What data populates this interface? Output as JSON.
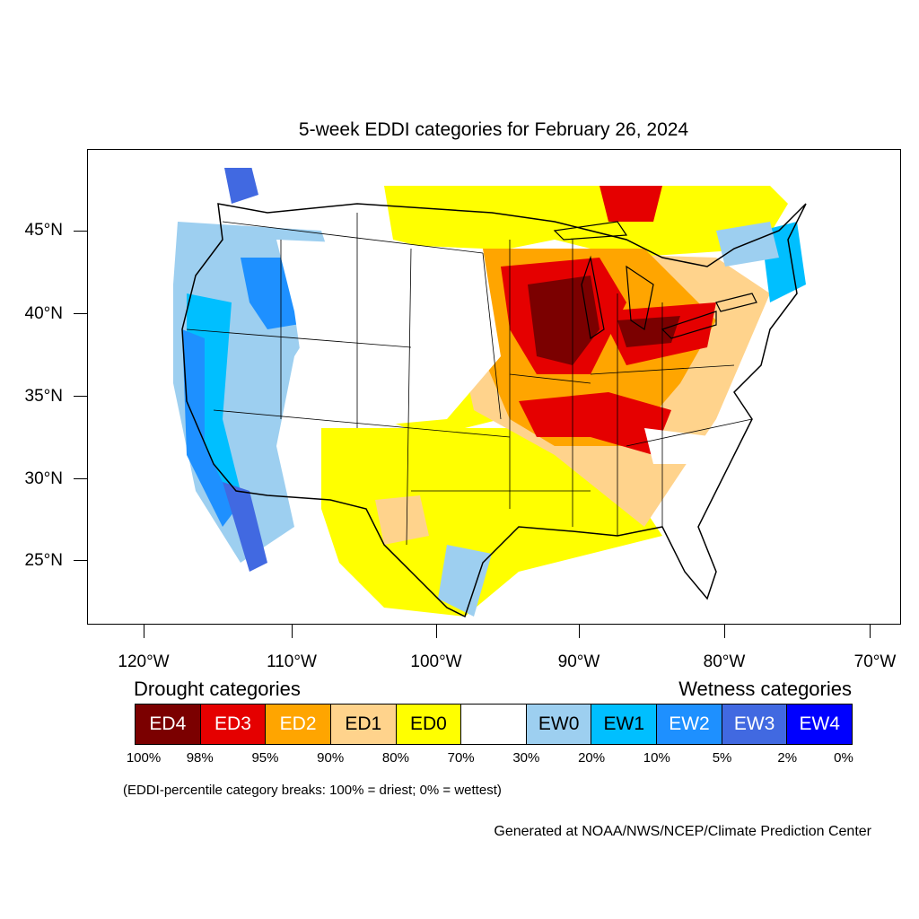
{
  "title": "5-week EDDI categories for February 26, 2024",
  "lat_labels": [
    "45°N",
    "40°N",
    "35°N",
    "30°N",
    "25°N"
  ],
  "lon_labels": [
    "120°W",
    "110°W",
    "100°W",
    "90°W",
    "80°W",
    "70°W"
  ],
  "legend": {
    "drought_title": "Drought categories",
    "wetness_title": "Wetness categories",
    "categories": [
      {
        "label": "ED4",
        "color": "#7b0000",
        "text_color": "#ffffff"
      },
      {
        "label": "ED3",
        "color": "#e50000",
        "text_color": "#ffffff"
      },
      {
        "label": "ED2",
        "color": "#ffa500",
        "text_color": "#ffffff"
      },
      {
        "label": "ED1",
        "color": "#ffd38c",
        "text_color": "#000000"
      },
      {
        "label": "ED0",
        "color": "#ffff00",
        "text_color": "#000000"
      },
      {
        "label": "",
        "color": "#ffffff",
        "text_color": "#000000"
      },
      {
        "label": "EW0",
        "color": "#9dcff0",
        "text_color": "#000000"
      },
      {
        "label": "EW1",
        "color": "#00bfff",
        "text_color": "#000000"
      },
      {
        "label": "EW2",
        "color": "#1e90ff",
        "text_color": "#ffffff"
      },
      {
        "label": "EW3",
        "color": "#4169e1",
        "text_color": "#ffffff"
      },
      {
        "label": "EW4",
        "color": "#0000ff",
        "text_color": "#ffffff"
      }
    ],
    "breaks": [
      "100%",
      "98%",
      "95%",
      "90%",
      "80%",
      "70%",
      "30%",
      "20%",
      "10%",
      "5%",
      "2%",
      "0%"
    ]
  },
  "note": "(EDDI-percentile category breaks: 100% = driest; 0% = wettest)",
  "credit": "Generated at NOAA/NWS/NCEP/Climate Prediction Center"
}
